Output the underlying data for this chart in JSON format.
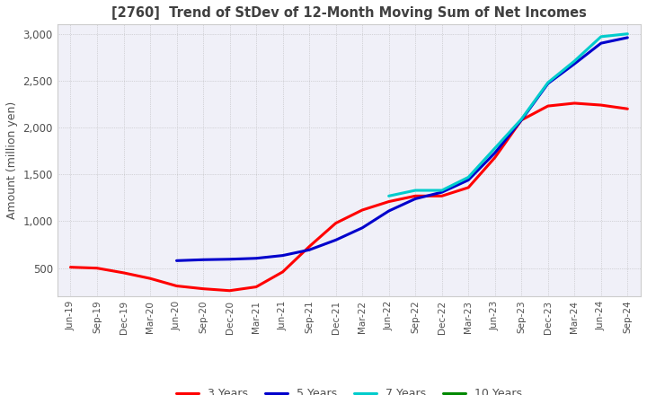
{
  "title": "[2760]  Trend of StDev of 12-Month Moving Sum of Net Incomes",
  "ylabel": "Amount (million yen)",
  "ylim": [
    200,
    3100
  ],
  "yticks": [
    500,
    1000,
    1500,
    2000,
    2500,
    3000
  ],
  "background_color": "#ffffff",
  "plot_bg_color": "#f0f0f8",
  "grid_color": "#aaaaaa",
  "title_color": "#404040",
  "axis_label_color": "#505050",
  "tick_label_color": "#505050",
  "x_labels": [
    "Jun-19",
    "Sep-19",
    "Dec-19",
    "Mar-20",
    "Jun-20",
    "Sep-20",
    "Dec-20",
    "Mar-21",
    "Jun-21",
    "Sep-21",
    "Dec-21",
    "Mar-22",
    "Jun-22",
    "Sep-22",
    "Dec-22",
    "Mar-23",
    "Jun-23",
    "Sep-23",
    "Dec-23",
    "Mar-24",
    "Jun-24",
    "Sep-24"
  ],
  "series": {
    "3 Years": {
      "color": "#ff0000",
      "data": [
        510,
        500,
        450,
        390,
        310,
        280,
        260,
        300,
        460,
        730,
        980,
        1120,
        1210,
        1270,
        1270,
        1360,
        1680,
        2080,
        2230,
        2260,
        2240,
        2200
      ]
    },
    "5 Years": {
      "color": "#0000cc",
      "data": [
        null,
        null,
        null,
        null,
        580,
        590,
        595,
        605,
        635,
        695,
        800,
        930,
        1110,
        1240,
        1310,
        1440,
        1730,
        2080,
        2470,
        2680,
        2900,
        2960
      ]
    },
    "7 Years": {
      "color": "#00cccc",
      "data": [
        null,
        null,
        null,
        null,
        null,
        null,
        null,
        null,
        null,
        null,
        null,
        null,
        1270,
        1330,
        1330,
        1470,
        1780,
        2090,
        2480,
        2710,
        2970,
        3000
      ]
    },
    "10 Years": {
      "color": "#008800",
      "data": [
        null,
        null,
        null,
        null,
        null,
        null,
        null,
        null,
        null,
        null,
        null,
        null,
        null,
        null,
        null,
        null,
        null,
        null,
        null,
        null,
        null,
        null
      ]
    }
  }
}
